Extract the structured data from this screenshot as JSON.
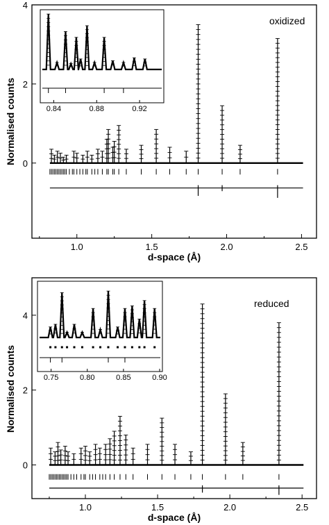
{
  "chart_data": [
    {
      "type": "line",
      "panel_label": "oxidized",
      "xlabel": "d-space (Å)",
      "ylabel": "Normalised counts",
      "xlim": [
        0.7,
        2.6
      ],
      "ylim": [
        -1.9,
        4.0
      ],
      "xticks": [
        1.0,
        1.5,
        2.0,
        2.5
      ],
      "xtick_labels": [
        "1.0",
        "1.5",
        "2.0",
        "2.5"
      ],
      "yticks": [
        0,
        2,
        4
      ],
      "ytick_labels": [
        "0",
        "2",
        "4"
      ],
      "baseline": 0.0,
      "tick_row_y": -0.22,
      "difference_offset": -0.63,
      "peaks": [
        {
          "d": 0.83,
          "h": 0.35
        },
        {
          "d": 0.85,
          "h": 0.2
        },
        {
          "d": 0.87,
          "h": 0.3
        },
        {
          "d": 0.89,
          "h": 0.25
        },
        {
          "d": 0.91,
          "h": 0.15
        },
        {
          "d": 0.93,
          "h": 0.2
        },
        {
          "d": 0.98,
          "h": 0.3
        },
        {
          "d": 1.0,
          "h": 0.25
        },
        {
          "d": 1.04,
          "h": 0.2
        },
        {
          "d": 1.07,
          "h": 0.3
        },
        {
          "d": 1.1,
          "h": 0.2
        },
        {
          "d": 1.14,
          "h": 0.35
        },
        {
          "d": 1.17,
          "h": 0.3
        },
        {
          "d": 1.2,
          "h": 0.6
        },
        {
          "d": 1.21,
          "h": 0.85
        },
        {
          "d": 1.24,
          "h": 0.4
        },
        {
          "d": 1.25,
          "h": 0.55
        },
        {
          "d": 1.28,
          "h": 0.95
        },
        {
          "d": 1.33,
          "h": 0.35
        },
        {
          "d": 1.43,
          "h": 0.45
        },
        {
          "d": 1.53,
          "h": 0.85
        },
        {
          "d": 1.62,
          "h": 0.4
        },
        {
          "d": 1.73,
          "h": 0.3
        },
        {
          "d": 1.81,
          "h": 3.5
        },
        {
          "d": 1.97,
          "h": 1.45
        },
        {
          "d": 2.09,
          "h": 0.45
        },
        {
          "d": 2.34,
          "h": 3.15
        }
      ],
      "hkl_ticks": [
        0.82,
        0.83,
        0.84,
        0.85,
        0.86,
        0.87,
        0.88,
        0.89,
        0.9,
        0.91,
        0.92,
        0.93,
        0.95,
        0.97,
        0.98,
        1.0,
        1.02,
        1.04,
        1.06,
        1.07,
        1.1,
        1.12,
        1.14,
        1.17,
        1.2,
        1.21,
        1.24,
        1.25,
        1.28,
        1.33,
        1.43,
        1.53,
        1.62,
        1.73,
        1.81,
        1.97,
        2.09,
        2.34
      ],
      "difference_spikes": [
        {
          "d": 1.81,
          "h": -0.2
        },
        {
          "d": 1.97,
          "h": -0.08
        },
        {
          "d": 2.34,
          "h": -0.25
        }
      ],
      "inset": {
        "xlim": [
          0.83,
          0.94
        ],
        "xticks": [
          0.84,
          0.88,
          0.92
        ],
        "xtick_labels": [
          "0.84",
          "0.88",
          "0.92"
        ],
        "peaks": [
          {
            "d": 0.835,
            "h": 0.95
          },
          {
            "d": 0.843,
            "h": 0.12
          },
          {
            "d": 0.851,
            "h": 0.65
          },
          {
            "d": 0.856,
            "h": 0.1
          },
          {
            "d": 0.861,
            "h": 0.55
          },
          {
            "d": 0.865,
            "h": 0.18
          },
          {
            "d": 0.871,
            "h": 0.75
          },
          {
            "d": 0.878,
            "h": 0.12
          },
          {
            "d": 0.887,
            "h": 0.55
          },
          {
            "d": 0.895,
            "h": 0.15
          },
          {
            "d": 0.905,
            "h": 0.12
          },
          {
            "d": 0.915,
            "h": 0.2
          },
          {
            "d": 0.925,
            "h": 0.18
          }
        ]
      }
    },
    {
      "type": "line",
      "panel_label": "reduced",
      "xlabel": "d-space (Å)",
      "ylabel": "Normalised counts",
      "xlim": [
        0.63,
        2.6
      ],
      "ylim": [
        -0.9,
        5.0
      ],
      "xticks": [
        1.0,
        1.5,
        2.0,
        2.5
      ],
      "xtick_labels": [
        "1.0",
        "1.5",
        "2.0",
        "2.5"
      ],
      "yticks": [
        0,
        2,
        4
      ],
      "ytick_labels": [
        "0",
        "2",
        "4"
      ],
      "baseline": 0.0,
      "tick_row_y": -0.32,
      "difference_offset": -0.62,
      "peaks": [
        {
          "d": 0.76,
          "h": 0.45
        },
        {
          "d": 0.79,
          "h": 0.35
        },
        {
          "d": 0.81,
          "h": 0.6
        },
        {
          "d": 0.83,
          "h": 0.4
        },
        {
          "d": 0.86,
          "h": 0.5
        },
        {
          "d": 0.88,
          "h": 0.35
        },
        {
          "d": 0.92,
          "h": 0.3
        },
        {
          "d": 0.97,
          "h": 0.45
        },
        {
          "d": 1.0,
          "h": 0.5
        },
        {
          "d": 1.03,
          "h": 0.35
        },
        {
          "d": 1.07,
          "h": 0.55
        },
        {
          "d": 1.1,
          "h": 0.45
        },
        {
          "d": 1.14,
          "h": 0.55
        },
        {
          "d": 1.17,
          "h": 0.7
        },
        {
          "d": 1.2,
          "h": 0.9
        },
        {
          "d": 1.24,
          "h": 1.3
        },
        {
          "d": 1.28,
          "h": 0.8
        },
        {
          "d": 1.33,
          "h": 0.45
        },
        {
          "d": 1.43,
          "h": 0.55
        },
        {
          "d": 1.53,
          "h": 1.25
        },
        {
          "d": 1.62,
          "h": 0.55
        },
        {
          "d": 1.73,
          "h": 0.35
        },
        {
          "d": 1.81,
          "h": 4.3
        },
        {
          "d": 1.97,
          "h": 1.9
        },
        {
          "d": 2.09,
          "h": 0.6
        },
        {
          "d": 2.34,
          "h": 3.8
        }
      ],
      "hkl_ticks": [
        0.75,
        0.76,
        0.77,
        0.78,
        0.79,
        0.8,
        0.81,
        0.82,
        0.83,
        0.84,
        0.85,
        0.86,
        0.87,
        0.88,
        0.9,
        0.92,
        0.94,
        0.97,
        0.99,
        1.0,
        1.03,
        1.05,
        1.07,
        1.1,
        1.12,
        1.14,
        1.17,
        1.2,
        1.24,
        1.28,
        1.33,
        1.43,
        1.53,
        1.62,
        1.73,
        1.81,
        1.97,
        2.09,
        2.34
      ],
      "difference_spikes": [
        {
          "d": 1.81,
          "h": -0.12
        },
        {
          "d": 2.34,
          "h": -0.18
        }
      ],
      "inset": {
        "xlim": [
          0.735,
          0.9
        ],
        "xticks": [
          0.75,
          0.8,
          0.85,
          0.9
        ],
        "xtick_labels": [
          "0.75",
          "0.80",
          "0.85",
          "0.90"
        ],
        "peaks": [
          {
            "d": 0.749,
            "h": 0.2
          },
          {
            "d": 0.756,
            "h": 0.25
          },
          {
            "d": 0.765,
            "h": 0.85
          },
          {
            "d": 0.772,
            "h": 0.1
          },
          {
            "d": 0.782,
            "h": 0.25
          },
          {
            "d": 0.793,
            "h": 0.1
          },
          {
            "d": 0.808,
            "h": 0.55
          },
          {
            "d": 0.818,
            "h": 0.15
          },
          {
            "d": 0.829,
            "h": 0.88
          },
          {
            "d": 0.842,
            "h": 0.2
          },
          {
            "d": 0.852,
            "h": 0.55
          },
          {
            "d": 0.862,
            "h": 0.6
          },
          {
            "d": 0.872,
            "h": 0.35
          },
          {
            "d": 0.879,
            "h": 0.7
          },
          {
            "d": 0.893,
            "h": 0.55
          }
        ]
      }
    }
  ]
}
